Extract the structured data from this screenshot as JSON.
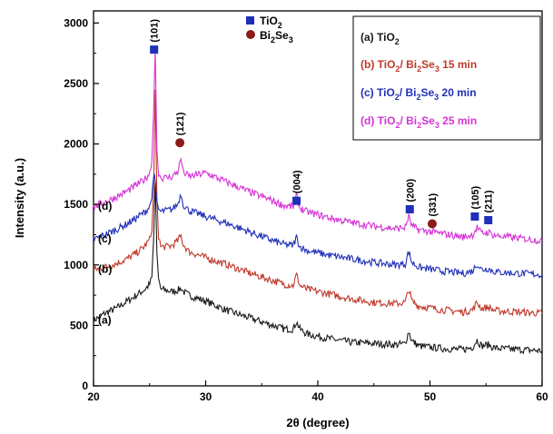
{
  "chart_data": {
    "type": "line",
    "xlabel": "2θ (degree)",
    "ylabel": "Intensity (a.u.)",
    "xlim": [
      20,
      60
    ],
    "ylim": [
      0,
      3100
    ],
    "xticks": [
      20,
      30,
      40,
      50,
      60
    ],
    "yticks": [
      0,
      500,
      1000,
      1500,
      2000,
      2500,
      3000
    ],
    "grid": false,
    "series": [
      {
        "name": "TiO2",
        "curve_label": "(a)",
        "legend_label": "(a)  TiO",
        "legend_sub": "2",
        "legend_rest": "",
        "color": "#1a1a1a",
        "x": [
          20,
          21,
          22,
          23,
          24,
          24.6,
          25,
          25.2,
          25.35,
          25.5,
          25.65,
          25.8,
          26,
          26.5,
          27,
          27.5,
          27.8,
          28,
          28.5,
          30,
          32,
          34,
          36,
          37,
          37.8,
          38.1,
          38.4,
          39,
          41,
          43,
          45,
          47,
          47.8,
          48.1,
          48.4,
          49,
          51,
          53,
          53.8,
          54.2,
          54.6,
          55.2,
          55.6,
          56,
          58,
          60
        ],
        "y": [
          540,
          600,
          640,
          700,
          760,
          800,
          840,
          900,
          1200,
          1700,
          1100,
          880,
          800,
          790,
          780,
          790,
          810,
          780,
          750,
          700,
          620,
          560,
          500,
          470,
          470,
          530,
          470,
          430,
          390,
          360,
          350,
          340,
          350,
          450,
          370,
          330,
          310,
          300,
          320,
          380,
          330,
          340,
          320,
          310,
          300,
          290
        ]
      },
      {
        "name": "TiO2/ Bi2Se3 15 min",
        "curve_label": "(b)",
        "legend_label": "(b)  TiO",
        "legend_sub": "2",
        "legend_rest": "/ Bi",
        "legend_sub2": "2",
        "legend_rest2": "Se",
        "legend_sub3": "3",
        "legend_rest3": " 15 min",
        "color": "#c0392b",
        "x": [
          20,
          21,
          22,
          23,
          24,
          24.6,
          25,
          25.2,
          25.35,
          25.5,
          25.65,
          25.8,
          26,
          26.5,
          27,
          27.5,
          27.8,
          28,
          28.5,
          30,
          32,
          34,
          36,
          37,
          37.8,
          38.1,
          38.4,
          39,
          41,
          43,
          45,
          47,
          47.8,
          48.1,
          48.4,
          49,
          51,
          53,
          53.8,
          54.2,
          54.6,
          55.2,
          55.6,
          56,
          58,
          60
        ],
        "y": [
          960,
          980,
          1010,
          1050,
          1110,
          1160,
          1210,
          1280,
          1600,
          2450,
          1550,
          1240,
          1150,
          1150,
          1160,
          1200,
          1240,
          1170,
          1110,
          1060,
          1000,
          930,
          870,
          840,
          830,
          920,
          830,
          800,
          760,
          720,
          690,
          680,
          690,
          800,
          700,
          660,
          630,
          610,
          630,
          690,
          640,
          650,
          630,
          620,
          610,
          600
        ]
      },
      {
        "name": "TiO2/ Bi2Se3 20 min",
        "curve_label": "(c)",
        "legend_label": "(c)  TiO",
        "legend_sub": "2",
        "legend_rest": "/ Bi",
        "legend_sub2": "2",
        "legend_rest2": "Se",
        "legend_sub3": "3",
        "legend_rest3": " 20 min",
        "color": "#1f2fb8",
        "x": [
          20,
          21,
          22,
          23,
          24,
          24.6,
          25,
          25.2,
          25.35,
          25.5,
          25.65,
          25.8,
          26,
          26.5,
          27,
          27.5,
          27.8,
          28,
          28.5,
          30,
          32,
          34,
          36,
          37,
          37.8,
          38.1,
          38.4,
          39,
          41,
          43,
          45,
          47,
          47.8,
          48.1,
          48.4,
          49,
          51,
          53,
          53.8,
          54.2,
          54.6,
          55.2,
          55.6,
          56,
          58,
          60
        ],
        "y": [
          1210,
          1250,
          1290,
          1340,
          1400,
          1440,
          1480,
          1550,
          1750,
          1700,
          1500,
          1460,
          1440,
          1450,
          1460,
          1500,
          1590,
          1500,
          1450,
          1400,
          1340,
          1270,
          1200,
          1170,
          1160,
          1230,
          1150,
          1120,
          1080,
          1050,
          1020,
          1000,
          1010,
          1110,
          1020,
          980,
          950,
          930,
          950,
          1010,
          960,
          970,
          950,
          940,
          930,
          920
        ]
      },
      {
        "name": "TiO2/ Bi2Se3 25 min",
        "curve_label": "(d)",
        "legend_label": "(d)  TiO",
        "legend_sub": "2",
        "legend_rest": "/ Bi",
        "legend_sub2": "2",
        "legend_rest2": "Se",
        "legend_sub3": "3",
        "legend_rest3": " 25 min",
        "color": "#d633d6",
        "x": [
          20,
          21,
          22,
          23,
          24,
          24.6,
          25,
          25.2,
          25.35,
          25.5,
          25.65,
          25.8,
          26,
          26.5,
          27,
          27.5,
          27.8,
          28,
          28.5,
          30,
          32,
          34,
          36,
          37,
          37.8,
          38.1,
          38.4,
          39,
          41,
          43,
          45,
          47,
          47.8,
          48.1,
          48.4,
          49,
          51,
          53,
          53.8,
          54.2,
          54.6,
          55.2,
          55.6,
          56,
          58,
          60
        ],
        "y": [
          1480,
          1520,
          1560,
          1610,
          1670,
          1710,
          1760,
          1850,
          2250,
          2780,
          1950,
          1760,
          1720,
          1720,
          1730,
          1770,
          1880,
          1770,
          1730,
          1760,
          1680,
          1600,
          1530,
          1490,
          1480,
          1570,
          1470,
          1440,
          1390,
          1350,
          1320,
          1300,
          1310,
          1400,
          1320,
          1290,
          1260,
          1230,
          1250,
          1310,
          1260,
          1270,
          1250,
          1240,
          1220,
          1200
        ]
      }
    ],
    "phase_legend": [
      {
        "label": "TiO",
        "sub": "2",
        "marker": "square",
        "color": "#1f2fb8"
      },
      {
        "label": "Bi",
        "sub": "2",
        "label2": "Se",
        "sub2": "3",
        "marker": "circle",
        "color": "#8b1a1a"
      }
    ],
    "peak_annotations": [
      {
        "label": "(101)",
        "x": 25.4,
        "y": 2780,
        "marker": "square",
        "color": "#1f2fb8"
      },
      {
        "label": "(121)",
        "x": 27.7,
        "y": 2010,
        "marker": "circle",
        "color": "#8b1a1a"
      },
      {
        "label": "(004)",
        "x": 38.1,
        "y": 1530,
        "marker": "square",
        "color": "#1f2fb8"
      },
      {
        "label": "(200)",
        "x": 48.2,
        "y": 1460,
        "marker": "square",
        "color": "#1f2fb8"
      },
      {
        "label": "(331)",
        "x": 50.2,
        "y": 1340,
        "marker": "circle",
        "color": "#8b1a1a"
      },
      {
        "label": "(105)",
        "x": 54.0,
        "y": 1400,
        "marker": "square",
        "color": "#1f2fb8"
      },
      {
        "label": "(211)",
        "x": 55.2,
        "y": 1370,
        "marker": "square",
        "color": "#1f2fb8"
      }
    ]
  }
}
